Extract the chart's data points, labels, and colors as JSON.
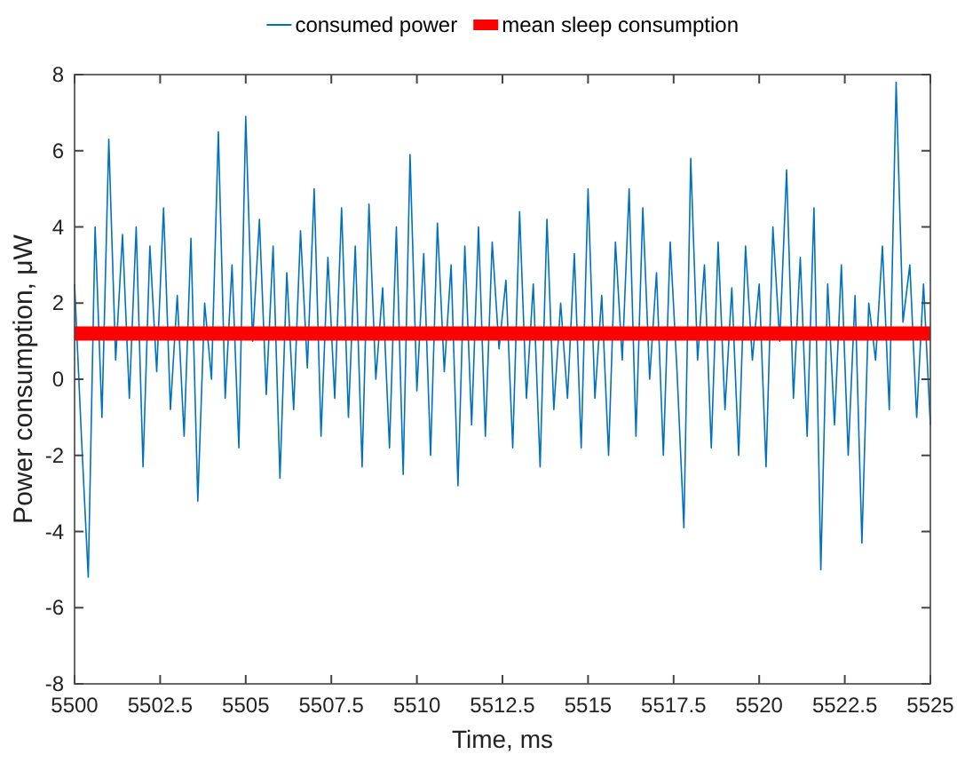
{
  "chart_data": {
    "type": "line",
    "xlabel": "Time, ms",
    "ylabel": "Power consumption, μW",
    "x": [
      5500,
      5500.2,
      5500.4,
      5500.6,
      5500.8,
      5501,
      5501.2,
      5501.4,
      5501.6,
      5501.8,
      5502,
      5502.2,
      5502.4,
      5502.6,
      5502.8,
      5503,
      5503.2,
      5503.4,
      5503.6,
      5503.8,
      5504,
      5504.2,
      5504.4,
      5504.6,
      5504.8,
      5505,
      5505.2,
      5505.4,
      5505.6,
      5505.8,
      5506,
      5506.2,
      5506.4,
      5506.6,
      5506.8,
      5507,
      5507.2,
      5507.4,
      5507.6,
      5507.8,
      5508,
      5508.2,
      5508.4,
      5508.6,
      5508.8,
      5509,
      5509.2,
      5509.4,
      5509.6,
      5509.8,
      5510,
      5510.2,
      5510.4,
      5510.6,
      5510.8,
      5511,
      5511.2,
      5511.4,
      5511.6,
      5511.8,
      5512,
      5512.2,
      5512.4,
      5512.6,
      5512.8,
      5513,
      5513.2,
      5513.4,
      5513.6,
      5513.8,
      5514,
      5514.2,
      5514.4,
      5514.6,
      5514.8,
      5515,
      5515.2,
      5515.4,
      5515.6,
      5515.8,
      5516,
      5516.2,
      5516.4,
      5516.6,
      5516.8,
      5517,
      5517.2,
      5517.4,
      5517.6,
      5517.8,
      5518,
      5518.2,
      5518.4,
      5518.6,
      5518.8,
      5519,
      5519.2,
      5519.4,
      5519.6,
      5519.8,
      5520,
      5520.2,
      5520.4,
      5520.6,
      5520.8,
      5521,
      5521.2,
      5521.4,
      5521.6,
      5521.8,
      5522,
      5522.2,
      5522.4,
      5522.6,
      5522.8,
      5523,
      5523.2,
      5523.4,
      5523.6,
      5523.8,
      5524,
      5524.2,
      5524.4,
      5524.6,
      5524.8,
      5525
    ],
    "series": [
      {
        "name": "consumed power",
        "color": "#0072bd",
        "values": [
          2.5,
          -1.5,
          -5.2,
          4.0,
          -1.0,
          6.3,
          0.5,
          3.8,
          -0.5,
          4.0,
          -2.3,
          3.5,
          0.2,
          4.5,
          -0.8,
          2.2,
          -1.5,
          3.7,
          -3.2,
          2.0,
          0.0,
          6.5,
          -0.5,
          3.0,
          -1.8,
          6.9,
          1.0,
          4.2,
          -0.4,
          3.5,
          -2.6,
          2.8,
          -0.8,
          3.9,
          0.3,
          5.0,
          -1.5,
          3.2,
          -0.5,
          4.5,
          -1.0,
          3.5,
          -2.3,
          4.6,
          0.0,
          2.4,
          -1.8,
          4.0,
          -2.5,
          5.9,
          -0.3,
          3.3,
          -2.0,
          4.1,
          0.2,
          3.0,
          -2.8,
          3.5,
          -1.2,
          4.0,
          -1.5,
          3.6,
          0.8,
          2.6,
          -1.8,
          4.4,
          -0.5,
          2.5,
          -2.3,
          4.2,
          -0.8,
          2.0,
          -0.5,
          3.3,
          -1.8,
          5.0,
          -0.5,
          2.2,
          -2.0,
          3.6,
          0.5,
          5.0,
          -1.5,
          4.5,
          0.0,
          2.8,
          -2.0,
          3.6,
          0.2,
          -3.9,
          5.8,
          0.5,
          3.0,
          -1.8,
          3.6,
          -0.8,
          2.4,
          -2.0,
          3.5,
          0.5,
          2.5,
          -2.3,
          4.0,
          1.0,
          5.5,
          -0.5,
          3.2,
          -1.5,
          4.5,
          -5.0,
          2.5,
          -1.2,
          3.0,
          -2.0,
          2.2,
          -4.3,
          2.0,
          0.5,
          3.5,
          -0.8,
          7.8,
          1.5,
          3.0,
          -1.0,
          2.5,
          -1.2
        ]
      },
      {
        "name": "mean sleep consumption",
        "color": "#ff0000",
        "x": [
          5500,
          5525
        ],
        "values": [
          1.2,
          1.2
        ]
      }
    ],
    "xlim": [
      5500,
      5525
    ],
    "xticks": [
      5500,
      5502.5,
      5505,
      5507.5,
      5510,
      5512.5,
      5515,
      5517.5,
      5520,
      5522.5,
      5525
    ],
    "ylim": [
      -8,
      8
    ],
    "yticks": [
      -8,
      -6,
      -4,
      -2,
      0,
      2,
      4,
      6,
      8
    ],
    "legend": "top",
    "grid": false
  }
}
